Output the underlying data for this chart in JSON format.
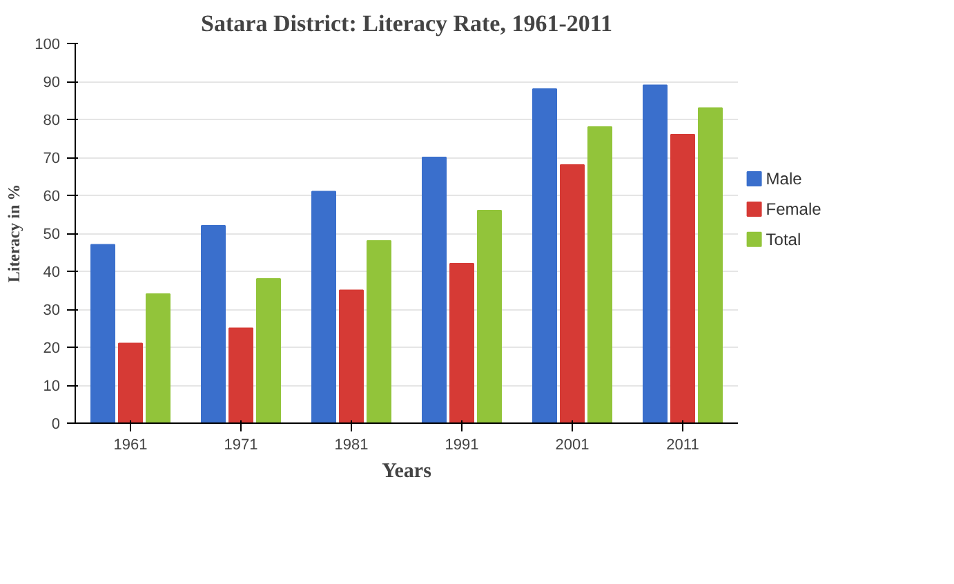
{
  "chart_data": {
    "type": "bar",
    "title": "Satara District: Literacy Rate, 1961-2011",
    "xlabel": "Years",
    "ylabel": "Literacy in %",
    "categories": [
      "1961",
      "1971",
      "1981",
      "1991",
      "2001",
      "2011"
    ],
    "series": [
      {
        "name": "Male",
        "color": "#3a6fcc",
        "values": [
          47,
          52,
          61,
          70,
          88,
          89
        ]
      },
      {
        "name": "Female",
        "color": "#d63a35",
        "values": [
          21,
          25,
          35,
          42,
          68,
          76
        ]
      },
      {
        "name": "Total",
        "color": "#92c43a",
        "values": [
          34,
          38,
          48,
          56,
          78,
          83
        ]
      }
    ],
    "ylim": [
      0,
      100
    ],
    "yticks": [
      0,
      10,
      20,
      30,
      40,
      50,
      60,
      70,
      80,
      90,
      100
    ],
    "grid": "y",
    "legend": "right"
  }
}
